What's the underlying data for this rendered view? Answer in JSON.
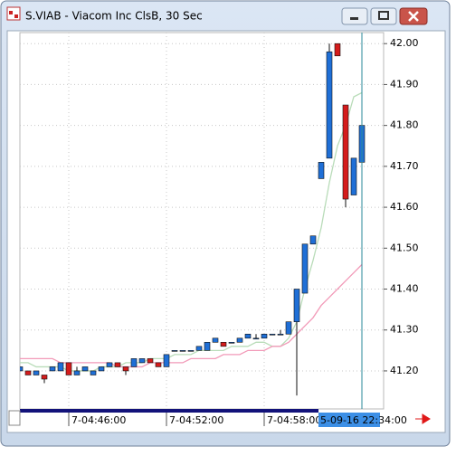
{
  "chart_data": {
    "type": "candlestick",
    "title": "S.VIAB - Viacom Inc ClsB, 30 Sec",
    "categories": [
      null,
      null,
      null,
      null,
      null,
      null,
      "7-04:46:00",
      null,
      null,
      null,
      null,
      null,
      null,
      null,
      null,
      null,
      null,
      null,
      "7-04:52:00",
      null,
      null,
      null,
      null,
      null,
      null,
      null,
      null,
      null,
      null,
      null,
      "7-04:58:00",
      null,
      null,
      null,
      null,
      null,
      null,
      null,
      null,
      null,
      null,
      null,
      null
    ],
    "open": [
      41.2,
      41.2,
      41.19,
      41.19,
      41.2,
      41.2,
      41.22,
      41.19,
      41.2,
      41.19,
      41.2,
      41.21,
      41.22,
      41.21,
      41.21,
      41.22,
      41.23,
      41.22,
      41.21,
      41.25,
      41.25,
      41.25,
      41.25,
      41.25,
      41.27,
      41.27,
      41.27,
      41.27,
      41.28,
      41.28,
      41.28,
      41.29,
      41.29,
      41.29,
      41.32,
      41.39,
      41.51,
      41.67,
      41.72,
      42.0,
      41.85,
      41.63,
      41.71
    ],
    "high": [
      41.21,
      41.2,
      41.2,
      41.19,
      41.21,
      41.22,
      41.22,
      41.21,
      41.21,
      41.2,
      41.21,
      41.22,
      41.22,
      41.21,
      41.23,
      41.23,
      41.23,
      41.22,
      41.24,
      41.25,
      41.25,
      41.25,
      41.26,
      41.27,
      41.28,
      41.27,
      41.27,
      41.28,
      41.29,
      41.29,
      41.29,
      41.29,
      41.3,
      41.32,
      41.4,
      41.51,
      41.53,
      41.71,
      42.0,
      42.0,
      41.85,
      41.72,
      41.81
    ],
    "low": [
      41.2,
      41.19,
      41.19,
      41.17,
      41.2,
      41.2,
      41.19,
      41.19,
      41.2,
      41.19,
      41.2,
      41.21,
      41.21,
      41.19,
      41.21,
      41.22,
      41.22,
      41.21,
      41.21,
      41.25,
      41.25,
      41.25,
      41.25,
      41.25,
      41.27,
      41.26,
      41.27,
      41.27,
      41.28,
      41.28,
      41.28,
      41.29,
      41.29,
      41.29,
      41.14,
      41.39,
      41.51,
      41.67,
      41.72,
      41.97,
      41.6,
      41.63,
      41.7
    ],
    "close": [
      41.21,
      41.19,
      41.2,
      41.18,
      41.21,
      41.22,
      41.19,
      41.2,
      41.21,
      41.2,
      41.21,
      41.22,
      41.21,
      41.2,
      41.23,
      41.23,
      41.22,
      41.21,
      41.24,
      41.25,
      41.25,
      41.25,
      41.26,
      41.27,
      41.28,
      41.26,
      41.27,
      41.28,
      41.29,
      41.28,
      41.29,
      41.29,
      41.29,
      41.32,
      41.4,
      41.51,
      41.53,
      41.71,
      41.98,
      41.97,
      41.62,
      41.72,
      41.8
    ],
    "up_color": "#1f6fd6",
    "down_color": "#d41c1c",
    "moving_averages": [
      {
        "color": "#b9dcb9",
        "values": [
          41.22,
          41.22,
          41.21,
          41.21,
          41.21,
          41.21,
          41.2,
          41.2,
          41.2,
          41.2,
          41.21,
          41.21,
          41.21,
          41.22,
          41.22,
          41.22,
          41.23,
          41.23,
          41.23,
          41.24,
          41.24,
          41.24,
          41.25,
          41.25,
          41.25,
          41.25,
          41.26,
          41.26,
          41.26,
          41.27,
          41.27,
          41.26,
          41.26,
          41.28,
          41.32,
          41.4,
          41.47,
          41.55,
          41.66,
          41.75,
          41.8,
          41.87,
          41.88
        ]
      },
      {
        "color": "#f29ab8",
        "values": [
          41.23,
          41.23,
          41.23,
          41.23,
          41.23,
          41.22,
          41.22,
          41.22,
          41.22,
          41.22,
          41.22,
          41.22,
          41.21,
          41.21,
          41.21,
          41.21,
          41.22,
          41.22,
          41.22,
          41.22,
          41.22,
          41.23,
          41.23,
          41.23,
          41.23,
          41.24,
          41.24,
          41.24,
          41.25,
          41.25,
          41.25,
          41.26,
          41.26,
          41.27,
          41.29,
          41.31,
          41.33,
          41.36,
          41.38,
          41.4,
          41.42,
          41.44,
          41.46
        ]
      }
    ],
    "cursor_label": "5-09-16 22:34:00",
    "ylim": [
      41.107,
      42.027
    ],
    "yticks": [
      {
        "value": 41.2,
        "label": "41.20"
      },
      {
        "value": 41.3,
        "label": "41.30"
      },
      {
        "value": 41.4,
        "label": "41.40"
      },
      {
        "value": 41.5,
        "label": "41.50"
      },
      {
        "value": 41.6,
        "label": "41.60"
      },
      {
        "value": 41.7,
        "label": "41.70"
      },
      {
        "value": 41.8,
        "label": "41.80"
      },
      {
        "value": 41.9,
        "label": "41.90"
      },
      {
        "value": 42.0,
        "label": "42.00"
      }
    ],
    "grid": true
  }
}
